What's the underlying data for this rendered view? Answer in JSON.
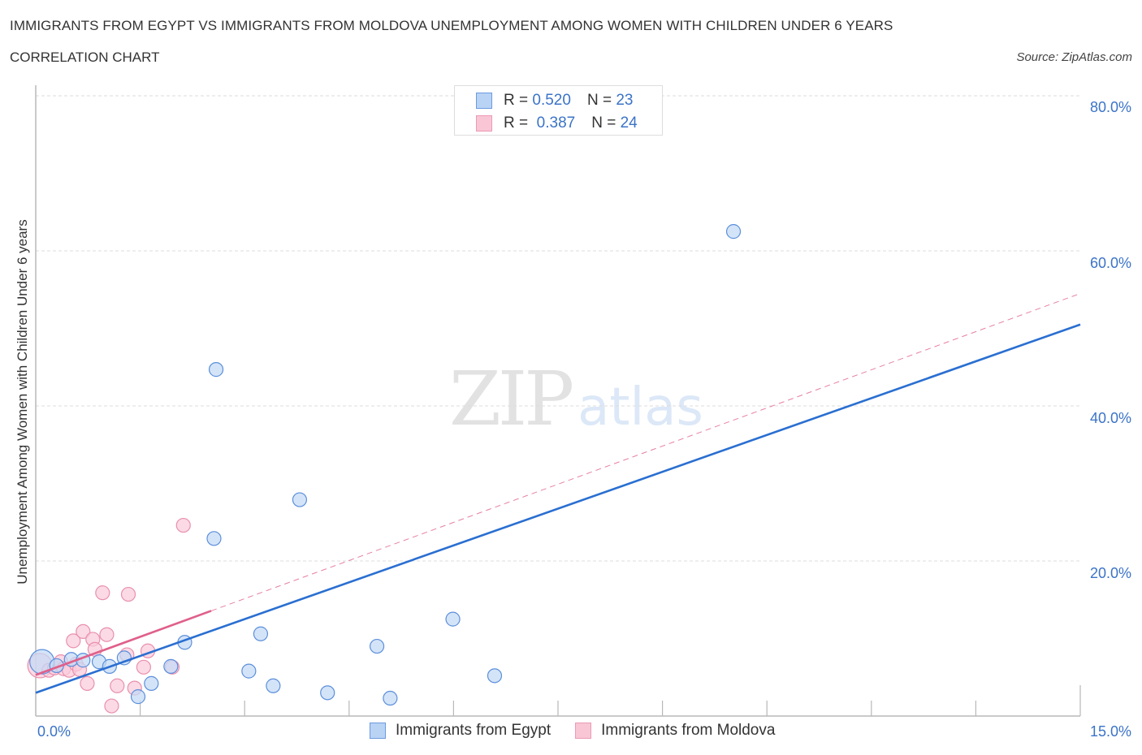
{
  "header": {
    "title": "IMMIGRANTS FROM EGYPT VS IMMIGRANTS FROM MOLDOVA UNEMPLOYMENT AMONG WOMEN WITH CHILDREN UNDER 6 YEARS",
    "subtitle": "CORRELATION CHART",
    "source": "Source: ZipAtlas.com"
  },
  "watermark": {
    "zip": "ZIP",
    "atlas": "atlas"
  },
  "legend": {
    "rows": [
      {
        "r_label": "R =",
        "r_value": "0.520",
        "n_label": "N =",
        "n_value": "23",
        "color": "#4a86d8",
        "fill": "#b9d3f4"
      },
      {
        "r_label": "R =",
        "r_value": "0.387",
        "n_label": "N =",
        "n_value": "24",
        "color": "#e87fa2",
        "fill": "#f8c6d5"
      }
    ]
  },
  "bottom_legend": {
    "items": [
      {
        "label": "Immigrants from Egypt"
      },
      {
        "label": "Immigrants from Moldova"
      }
    ]
  },
  "axes": {
    "ylabel": "Unemployment Among Women with Children Under 6 years",
    "yticks": [
      "80.0%",
      "60.0%",
      "40.0%",
      "20.0%"
    ],
    "xticks": {
      "left": "0.0%",
      "right": "15.0%"
    }
  },
  "colors": {
    "egypt_stroke": "#5b8fdb",
    "egypt_fill": "#c4d9f5",
    "egypt_line": "#2a6fd1",
    "moldova_stroke": "#e990ad",
    "moldova_fill": "#f9ccdb",
    "moldova_line": "#e0608a",
    "tick_text": "#3b73c8"
  },
  "chart_data": {
    "type": "scatter",
    "title": "IMMIGRANTS FROM EGYPT VS IMMIGRANTS FROM MOLDOVA UNEMPLOYMENT AMONG WOMEN WITH CHILDREN UNDER 6 YEARS",
    "subtitle": "CORRELATION CHART",
    "xlabel": "",
    "ylabel": "Unemployment Among Women with Children Under 6 years",
    "xlim": [
      0,
      15
    ],
    "ylim": [
      0,
      80
    ],
    "x_tick_labels": [
      "0.0%",
      "15.0%"
    ],
    "y_tick_labels": [
      "20.0%",
      "40.0%",
      "60.0%",
      "80.0%"
    ],
    "grid": "horizontal dashed",
    "legend_position": "top-center and bottom",
    "series": [
      {
        "name": "Immigrants from Egypt",
        "R": 0.52,
        "N": 23,
        "points": [
          [
            0.09,
            7.0
          ],
          [
            0.3,
            6.5
          ],
          [
            0.51,
            7.3
          ],
          [
            0.68,
            7.2
          ],
          [
            0.91,
            7.0
          ],
          [
            1.06,
            6.4
          ],
          [
            1.27,
            7.5
          ],
          [
            1.47,
            2.5
          ],
          [
            1.66,
            4.2
          ],
          [
            1.94,
            6.4
          ],
          [
            2.14,
            9.5
          ],
          [
            2.56,
            22.9
          ],
          [
            2.59,
            44.7
          ],
          [
            3.06,
            5.8
          ],
          [
            3.23,
            10.6
          ],
          [
            3.41,
            3.9
          ],
          [
            3.79,
            27.9
          ],
          [
            4.19,
            3.0
          ],
          [
            4.9,
            9.0
          ],
          [
            5.09,
            2.3
          ],
          [
            5.99,
            12.5
          ],
          [
            6.59,
            5.2
          ],
          [
            10.02,
            62.5
          ]
        ],
        "trend": {
          "x0": 0,
          "y0": 3.0,
          "x1": 15,
          "y1": 50.5
        }
      },
      {
        "name": "Immigrants from Moldova",
        "R": 0.387,
        "N": 24,
        "points": [
          [
            0.06,
            6.5
          ],
          [
            0.19,
            5.9
          ],
          [
            0.27,
            6.2
          ],
          [
            0.36,
            7.0
          ],
          [
            0.4,
            6.1
          ],
          [
            0.48,
            5.9
          ],
          [
            0.54,
            9.7
          ],
          [
            0.58,
            6.7
          ],
          [
            0.63,
            6.0
          ],
          [
            0.68,
            10.9
          ],
          [
            0.74,
            4.2
          ],
          [
            0.82,
            9.9
          ],
          [
            0.85,
            8.6
          ],
          [
            0.96,
            15.9
          ],
          [
            1.02,
            10.5
          ],
          [
            1.09,
            1.3
          ],
          [
            1.17,
            3.9
          ],
          [
            1.31,
            7.9
          ],
          [
            1.33,
            15.7
          ],
          [
            1.42,
            3.6
          ],
          [
            1.55,
            6.3
          ],
          [
            1.61,
            8.4
          ],
          [
            1.96,
            6.3
          ],
          [
            2.12,
            24.6
          ]
        ],
        "trend": {
          "x0": 0,
          "y0": 5.3,
          "x1": 15,
          "y1": 54.5,
          "solid_until_x": 2.52
        }
      }
    ]
  }
}
